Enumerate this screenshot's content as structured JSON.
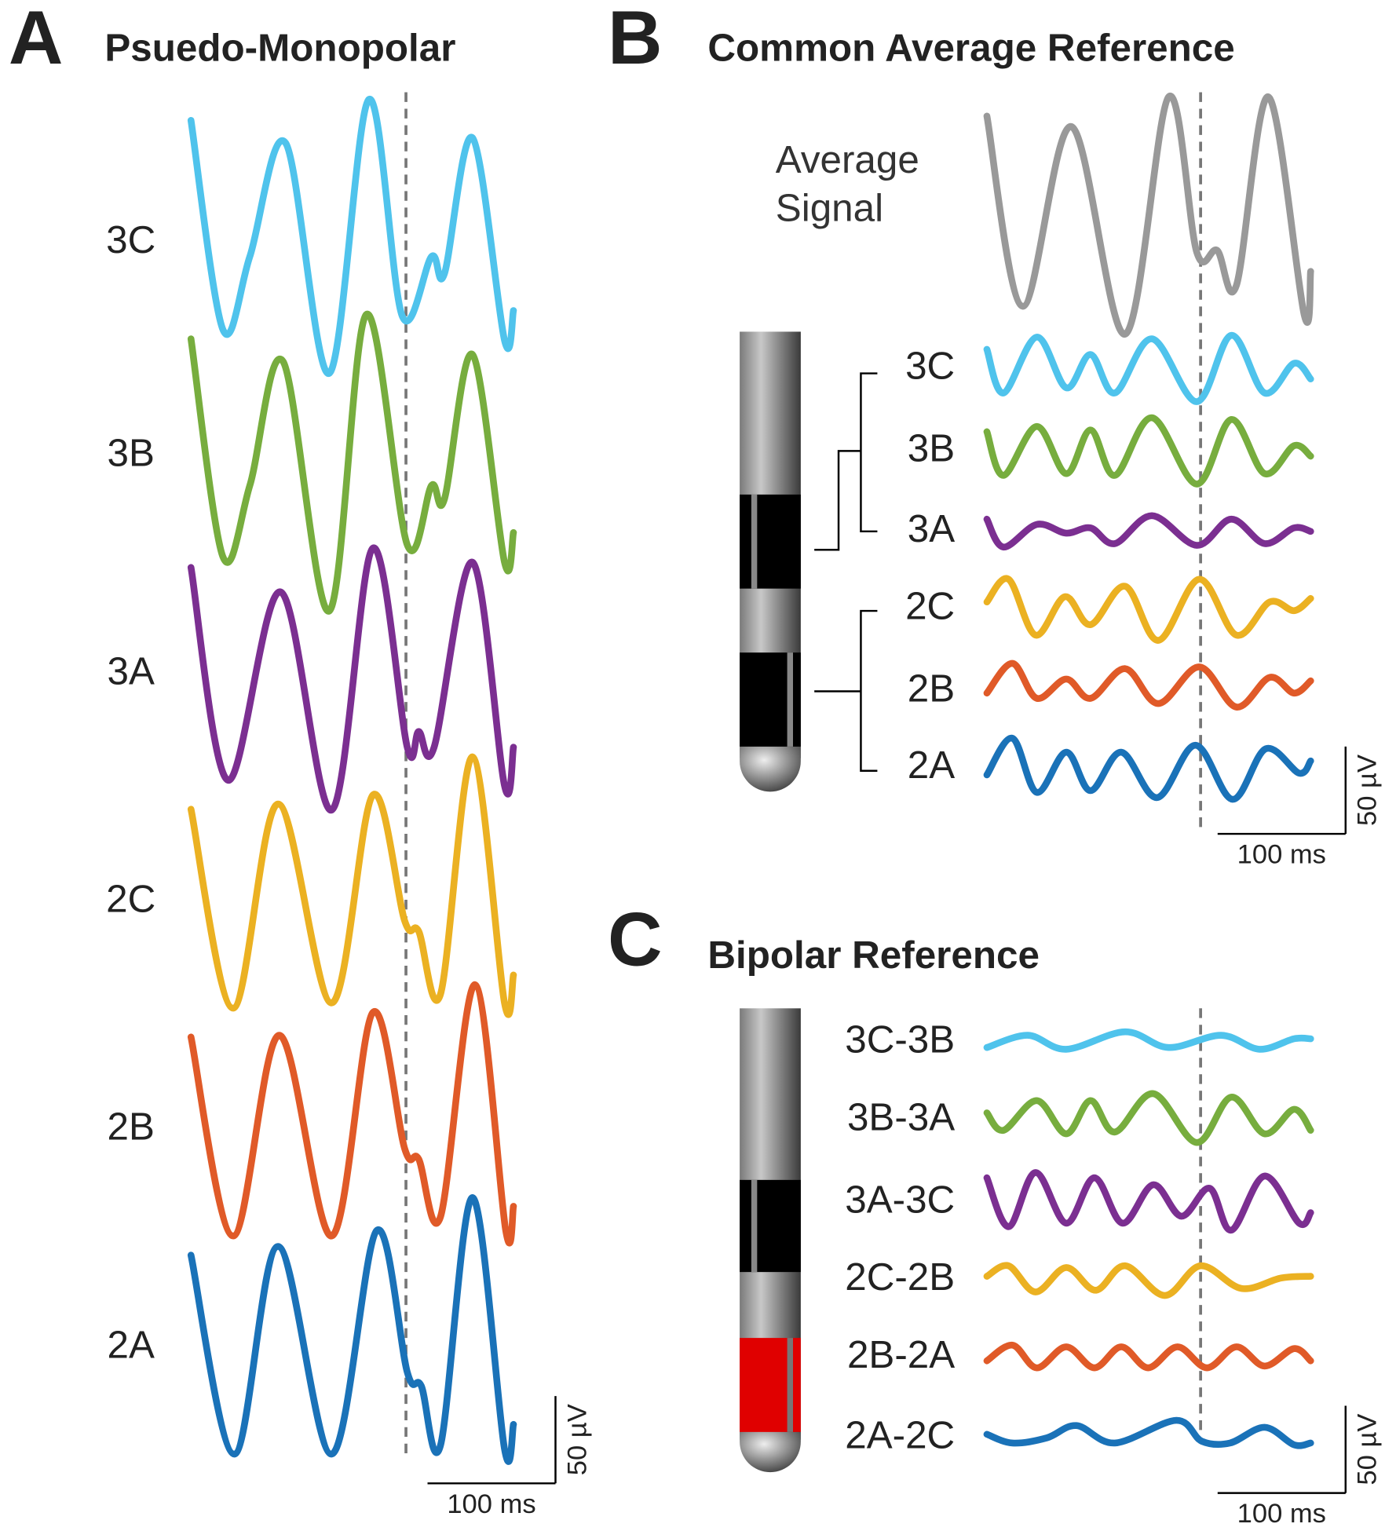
{
  "chart_data": [
    {
      "type": "line",
      "panel_label": "A",
      "title": "Psuedo-Monopolar",
      "xlim": [
        0,
        252
      ],
      "vline": 168,
      "scale_bar": {
        "x": {
          "value": 100,
          "label": "100 ms"
        },
        "y": {
          "value": 50,
          "label": "50 µV"
        }
      },
      "series": [
        {
          "name": "3C",
          "color": "#4fc3ec",
          "x": [
            0,
            25,
            46,
            74,
            108,
            139,
            165,
            188,
            198,
            220,
            245,
            252
          ],
          "values": [
            70,
            -50,
            -8,
            57,
            -75,
            82,
            -42,
            -8,
            -18,
            60,
            -56,
            -39
          ]
        },
        {
          "name": "3B",
          "color": "#77ad3e",
          "x": [
            0,
            25,
            46,
            72,
            108,
            137,
            169,
            188,
            198,
            220,
            245,
            252
          ],
          "values": [
            67,
            -58,
            -17,
            54,
            -89,
            81,
            -51,
            -17,
            -25,
            58,
            -61,
            -44
          ]
        },
        {
          "name": "3A",
          "color": "#7b2f91",
          "x": [
            0,
            29,
            70,
            110,
            142,
            169,
            178,
            190,
            220,
            245,
            252
          ],
          "values": [
            61,
            -61,
            47,
            -78,
            72,
            -42,
            -33,
            -42,
            64,
            -64,
            -42
          ]
        },
        {
          "name": "2C",
          "color": "#ebb122",
          "x": [
            0,
            33,
            68,
            110,
            142,
            167,
            178,
            195,
            220,
            245,
            252
          ],
          "values": [
            53,
            -61,
            56,
            -58,
            61,
            -11,
            -17,
            -53,
            83,
            -58,
            -42
          ]
        },
        {
          "name": "2B",
          "color": "#e05a28",
          "x": [
            0,
            33,
            69,
            110,
            142,
            167,
            178,
            195,
            222,
            246,
            252
          ],
          "values": [
            53,
            -61,
            54,
            -61,
            67,
            -11,
            -17,
            -50,
            83,
            -58,
            -44
          ]
        },
        {
          "name": "2A",
          "color": "#1a72b8",
          "x": [
            0,
            34,
            68,
            110,
            145,
            169,
            180,
            195,
            220,
            245,
            252
          ],
          "values": [
            53,
            -61,
            58,
            -61,
            67,
            -14,
            -22,
            -56,
            86,
            -58,
            -44
          ]
        }
      ]
    },
    {
      "type": "line",
      "panel_label": "B",
      "title": "Common Average Reference",
      "xlim": [
        0,
        253
      ],
      "vline": 167,
      "scale_bar": {
        "x": {
          "value": 100,
          "label": "100 ms"
        },
        "y": {
          "value": 50,
          "label": "50 µV"
        }
      },
      "series": [
        {
          "name": "Average Signal",
          "color": "#999999",
          "x": [
            0,
            28,
            66,
            108,
            142,
            164,
            180,
            195,
            220,
            248,
            253
          ],
          "values": [
            53,
            -56,
            47,
            -72,
            64,
            -25,
            -24,
            -44,
            64,
            -61,
            -36
          ]
        },
        {
          "name": "3C",
          "color": "#4fc3ec",
          "x": [
            0,
            13,
            39,
            62,
            81,
            100,
            129,
            164,
            191,
            217,
            240,
            253
          ],
          "values": [
            11,
            -14,
            18,
            -11,
            8,
            -14,
            17,
            -19,
            19,
            -14,
            3,
            -6
          ]
        },
        {
          "name": "3B",
          "color": "#77ad3e",
          "x": [
            0,
            13,
            39,
            62,
            81,
            100,
            129,
            164,
            191,
            217,
            240,
            253
          ],
          "values": [
            11,
            -14,
            14,
            -13,
            12,
            -14,
            19,
            -19,
            18,
            -13,
            3,
            -3
          ]
        },
        {
          "name": "3A",
          "color": "#7b2f91",
          "x": [
            0,
            13,
            39,
            62,
            81,
            100,
            129,
            164,
            191,
            217,
            240,
            253
          ],
          "values": [
            7,
            -9,
            4,
            -1,
            2,
            -7,
            9,
            -8,
            7,
            -7,
            2,
            0
          ]
        },
        {
          "name": "2C",
          "color": "#ebb122",
          "x": [
            0,
            17,
            38,
            61,
            81,
            108,
            134,
            166,
            195,
            221,
            240,
            253
          ],
          "values": [
            4,
            17,
            -15,
            7,
            -9,
            13,
            -18,
            17,
            -15,
            4,
            -1,
            6
          ]
        },
        {
          "name": "2B",
          "color": "#e05a28",
          "x": [
            0,
            20,
            39,
            62,
            81,
            108,
            134,
            166,
            195,
            221,
            240,
            253
          ],
          "values": [
            -1,
            16,
            -4,
            7,
            -4,
            13,
            -7,
            14,
            -9,
            8,
            -1,
            6
          ]
        },
        {
          "name": "2A",
          "color": "#1a72b8",
          "x": [
            0,
            20,
            39,
            62,
            81,
            105,
            133,
            163,
            192,
            218,
            244,
            253
          ],
          "values": [
            -4,
            17,
            -14,
            9,
            -13,
            9,
            -17,
            13,
            -18,
            11,
            -3,
            4
          ]
        }
      ]
    },
    {
      "type": "line",
      "panel_label": "C",
      "title": "Bipolar Reference",
      "xlim": [
        0,
        253
      ],
      "vline": 167,
      "scale_bar": {
        "x": {
          "value": 100,
          "label": "100 ms"
        },
        "y": {
          "value": 50,
          "label": "50 µV"
        }
      },
      "series": [
        {
          "name": "3C-3B",
          "color": "#4fc3ec",
          "x": [
            0,
            32,
            62,
            108,
            142,
            183,
            213,
            240,
            253
          ],
          "values": [
            -3,
            4,
            -4,
            6,
            -3,
            4,
            -4,
            2,
            2
          ]
        },
        {
          "name": "3B-3A",
          "color": "#77ad3e",
          "x": [
            0,
            13,
            39,
            62,
            81,
            100,
            130,
            164,
            191,
            217,
            240,
            253
          ],
          "values": [
            4,
            -6,
            11,
            -8,
            11,
            -7,
            15,
            -13,
            13,
            -8,
            6,
            -6
          ]
        },
        {
          "name": "3A-3C",
          "color": "#7b2f91",
          "x": [
            0,
            17,
            38,
            62,
            84,
            106,
            130,
            152,
            174,
            191,
            217,
            244,
            253
          ],
          "values": [
            14,
            -14,
            17,
            -12,
            14,
            -12,
            10,
            -8,
            8,
            -16,
            15,
            -12,
            -6
          ]
        },
        {
          "name": "2C-2B",
          "color": "#ebb122",
          "x": [
            0,
            17,
            38,
            62,
            85,
            108,
            139,
            167,
            199,
            230,
            253
          ],
          "values": [
            2,
            8,
            -7,
            7,
            -6,
            8,
            -9,
            8,
            -5,
            1,
            2
          ]
        },
        {
          "name": "2B-2A",
          "color": "#e05a28",
          "x": [
            0,
            20,
            39,
            62,
            84,
            105,
            126,
            149,
            172,
            195,
            217,
            240,
            253
          ],
          "values": [
            -2,
            7,
            -6,
            6,
            -6,
            6,
            -6,
            6,
            -6,
            6,
            -5,
            5,
            -2
          ]
        },
        {
          "name": "2A-2C",
          "color": "#1a72b8",
          "x": [
            0,
            20,
            47,
            70,
            100,
            148,
            168,
            190,
            217,
            240,
            253
          ],
          "values": [
            2,
            -3,
            0,
            7,
            -3,
            10,
            -2,
            -3,
            6,
            -4,
            -3
          ]
        }
      ]
    }
  ]
}
